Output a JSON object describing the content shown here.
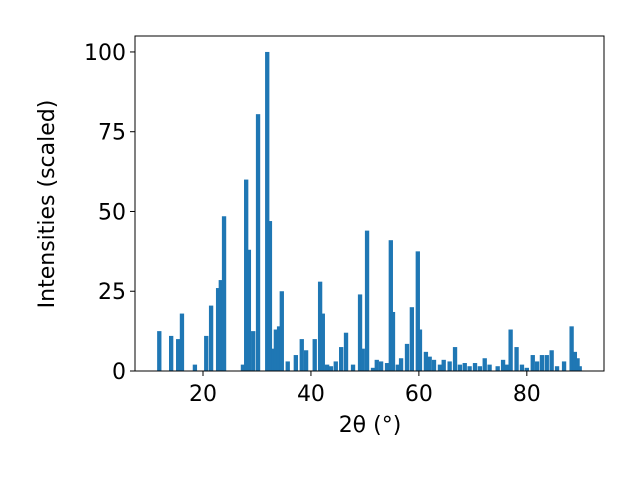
{
  "chart_data": {
    "type": "bar",
    "color": "#1f77b4",
    "xlabel": "2θ (°)",
    "ylabel": "Intensities (scaled)",
    "x": [
      11.9,
      14.1,
      15.4,
      16.1,
      18.5,
      20.6,
      21.5,
      22.8,
      23.3,
      23.9,
      27.4,
      28.0,
      28.5,
      29.3,
      30.2,
      31.9,
      32.4,
      33.0,
      33.5,
      34.1,
      34.6,
      35.7,
      37.2,
      38.3,
      39.1,
      40.7,
      41.7,
      42.2,
      43.0,
      43.7,
      44.6,
      45.6,
      46.5,
      47.8,
      49.1,
      49.6,
      50.4,
      51.5,
      52.2,
      53.0,
      54.1,
      54.8,
      55.2,
      56.1,
      56.7,
      57.8,
      58.7,
      59.8,
      60.2,
      61.3,
      62.0,
      62.8,
      63.9,
      64.6,
      65.7,
      66.7,
      67.6,
      68.5,
      69.4,
      70.4,
      71.3,
      72.2,
      73.1,
      74.6,
      75.6,
      76.3,
      77.0,
      78.1,
      79.1,
      80.0,
      81.1,
      81.9,
      82.8,
      83.7,
      84.6,
      85.6,
      86.9,
      88.3,
      88.9,
      89.4,
      89.8
    ],
    "values": [
      12.5,
      11,
      10,
      18,
      2,
      11,
      20.5,
      26,
      28.5,
      48.5,
      2,
      60,
      38,
      12.5,
      80.5,
      100,
      47,
      7,
      13,
      14,
      25,
      3,
      5,
      10,
      6.5,
      10,
      28,
      18,
      2,
      1.5,
      3,
      7.5,
      12,
      2,
      24,
      7,
      44,
      1,
      3.5,
      3,
      2.5,
      41,
      18.5,
      2,
      4,
      8.5,
      20,
      37.5,
      13,
      6,
      4.5,
      3.5,
      2,
      3.5,
      3,
      7.5,
      2,
      2.5,
      1.5,
      2.5,
      1.5,
      4,
      2,
      1.5,
      3.5,
      2,
      13,
      7.5,
      2,
      1,
      5,
      3,
      5,
      5,
      6.5,
      1.5,
      3,
      14,
      6,
      4,
      1.5
    ],
    "xlim": [
      7.4,
      94.3
    ],
    "ylim": [
      0,
      105
    ],
    "xticks": [
      20,
      40,
      60,
      80
    ],
    "yticks": [
      0,
      25,
      50,
      75,
      100
    ]
  }
}
